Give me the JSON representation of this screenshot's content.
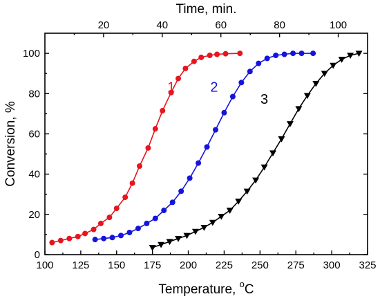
{
  "chart_data": {
    "type": "line",
    "xlabel": "Temperature, ",
    "xlabel_unit_sup": "o",
    "xlabel_unit": "C",
    "ylabel": "Conversion, %",
    "x2label": "Time, min.",
    "xlim": [
      100,
      325
    ],
    "ylim": [
      0,
      110
    ],
    "x2lim": [
      0,
      110
    ],
    "x_ticks": [
      100,
      125,
      150,
      175,
      200,
      225,
      250,
      275,
      300,
      325
    ],
    "y_ticks": [
      0,
      20,
      40,
      60,
      80,
      100
    ],
    "x2_ticks": [
      20,
      40,
      60,
      80,
      100
    ],
    "x2_tick_values": [
      20,
      40,
      60,
      80,
      100
    ],
    "legend": "none",
    "grid": false,
    "series": [
      {
        "name": "1",
        "color": "#e8141e",
        "marker": "circle",
        "label_at": [
          188,
          81
        ],
        "points": [
          [
            105,
            6
          ],
          [
            111,
            7
          ],
          [
            117,
            8
          ],
          [
            123,
            9
          ],
          [
            128,
            10.5
          ],
          [
            134,
            12.5
          ],
          [
            139,
            15.5
          ],
          [
            145,
            18.5
          ],
          [
            150,
            23
          ],
          [
            156,
            28.5
          ],
          [
            161,
            35.5
          ],
          [
            166,
            44
          ],
          [
            172,
            53
          ],
          [
            177,
            62.5
          ],
          [
            182,
            71.5
          ],
          [
            188,
            80.5
          ],
          [
            193,
            87.5
          ],
          [
            198,
            92.5
          ],
          [
            204,
            96
          ],
          [
            209,
            98
          ],
          [
            215,
            99
          ],
          [
            220,
            99.5
          ],
          [
            226,
            99.8
          ],
          [
            236,
            100
          ]
        ]
      },
      {
        "name": "2",
        "color": "#1414dc",
        "marker": "circle",
        "label_at": [
          218,
          81
        ],
        "points": [
          [
            135,
            7.5
          ],
          [
            141,
            8
          ],
          [
            147,
            8.5
          ],
          [
            153,
            9.5
          ],
          [
            159,
            11
          ],
          [
            165,
            13
          ],
          [
            171,
            15.5
          ],
          [
            177,
            18
          ],
          [
            183,
            22
          ],
          [
            189,
            26
          ],
          [
            195,
            31.5
          ],
          [
            201,
            38
          ],
          [
            207,
            45.5
          ],
          [
            213,
            53.5
          ],
          [
            219,
            62
          ],
          [
            225,
            70.5
          ],
          [
            231,
            78.5
          ],
          [
            237,
            85.5
          ],
          [
            243,
            91
          ],
          [
            249,
            95
          ],
          [
            255,
            97.5
          ],
          [
            261,
            99
          ],
          [
            267,
            99.5
          ],
          [
            273,
            100
          ],
          [
            279,
            100
          ],
          [
            287,
            100
          ]
        ]
      },
      {
        "name": "3",
        "color": "#000000",
        "marker": "triangle-down",
        "label_at": [
          253,
          75
        ],
        "points": [
          [
            175,
            3.5
          ],
          [
            181,
            5
          ],
          [
            187,
            6.5
          ],
          [
            193,
            8
          ],
          [
            199,
            9.5
          ],
          [
            205,
            11.5
          ],
          [
            211,
            13.5
          ],
          [
            217,
            16
          ],
          [
            223,
            19
          ],
          [
            229,
            22
          ],
          [
            235,
            26.5
          ],
          [
            241,
            31.5
          ],
          [
            247,
            37
          ],
          [
            253,
            43.5
          ],
          [
            259,
            50.5
          ],
          [
            265,
            57.5
          ],
          [
            271,
            65
          ],
          [
            277,
            72.5
          ],
          [
            283,
            79
          ],
          [
            289,
            85
          ],
          [
            295,
            90
          ],
          [
            301,
            94
          ],
          [
            307,
            97
          ],
          [
            313,
            99
          ],
          [
            319,
            100
          ]
        ]
      }
    ]
  }
}
